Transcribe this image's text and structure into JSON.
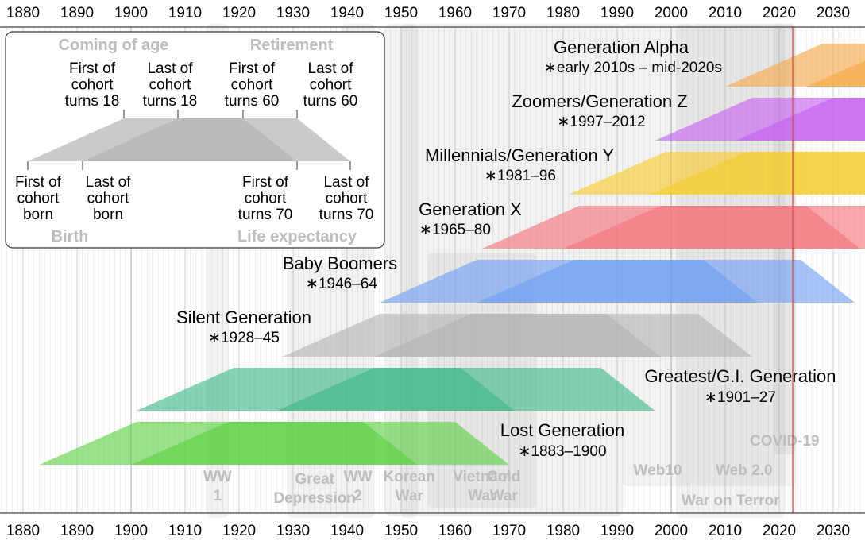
{
  "chart_data": {
    "type": "timeline",
    "axis": {
      "xlim": [
        1872,
        2038
      ],
      "ticks": [
        1880,
        1890,
        1900,
        1910,
        1920,
        1930,
        1940,
        1950,
        1960,
        1970,
        1980,
        1990,
        2000,
        2010,
        2020,
        2030
      ],
      "tick_labels": [
        "1880",
        "1890",
        "1900",
        "1910",
        "1920",
        "1930",
        "1940",
        "1950",
        "1960",
        "1970",
        "1980",
        "1990",
        "2000",
        "2010",
        "2020",
        "2030"
      ],
      "current_year_marker": 2022.5,
      "current_year_color": "#d9534f"
    },
    "events": [
      {
        "name": "ww1",
        "label": "WW\n1",
        "start": 1914,
        "end": 1918
      },
      {
        "name": "great-depression",
        "label": "Great\nDepression",
        "start": 1929,
        "end": 1939
      },
      {
        "name": "ww2",
        "label": "WW\n2",
        "start": 1939,
        "end": 1945
      },
      {
        "name": "korean-war",
        "label": "Korean\nWar",
        "start": 1950,
        "end": 1953
      },
      {
        "name": "vietnam-war",
        "label": "Vietnam\nWar",
        "start": 1955,
        "end": 1975
      },
      {
        "name": "cold-war",
        "label": "Cold\nWar",
        "start": 1947,
        "end": 1991
      },
      {
        "name": "web10",
        "label": "Web10",
        "start": 1991,
        "end": 2004
      },
      {
        "name": "web20",
        "label": "Web 2.0",
        "start": 2004,
        "end": 2023
      },
      {
        "name": "war-on-terror",
        "label": "War on Terror",
        "start": 2001,
        "end": 2021
      },
      {
        "name": "covid19",
        "label": "COVID-19",
        "start": 2019,
        "end": 2023
      }
    ],
    "generations": [
      {
        "name": "Generation Alpha",
        "years": "∗early 2010s – mid-2020s",
        "start": 2010,
        "end": 2025,
        "color": "#f5a742"
      },
      {
        "name": "Zoomers/Generation Z",
        "years": "∗1997–2012",
        "start": 1997,
        "end": 2012,
        "color": "#c55ff0"
      },
      {
        "name": "Millennials/Generation Y",
        "years": "∗1981–96",
        "start": 1981,
        "end": 1996,
        "color": "#f7cc2a"
      },
      {
        "name": "Generation X",
        "years": "∗1965–80",
        "start": 1965,
        "end": 1980,
        "color": "#f4737a"
      },
      {
        "name": "Baby Boomers",
        "years": "∗1946–64",
        "start": 1946,
        "end": 1964,
        "color": "#6f9ef2"
      },
      {
        "name": "Silent Generation",
        "years": "∗1928–45",
        "start": 1928,
        "end": 1945,
        "color": "#b3b3b3"
      },
      {
        "name": "Greatest/G.I. Generation",
        "years": "∗1901–27",
        "start": 1901,
        "end": 1927,
        "color": "#3db887"
      },
      {
        "name": "Lost Generation",
        "years": "∗1883–1900",
        "start": 1883,
        "end": 1900,
        "color": "#5ad141"
      }
    ],
    "legend": {
      "top_left": "Coming of age",
      "top_right": "Retirement",
      "bottom_left": "Birth",
      "bottom_right": "Life expectancy",
      "labels": {
        "first_18": "First of\ncohort\nturns 18",
        "last_18": "Last of\ncohort\nturns 18",
        "first_60": "First of\ncohort\nturns 60",
        "last_60": "Last of\ncohort\nturns 60",
        "first_born": "First of\ncohort\nborn",
        "last_born": "Last of\ncohort\nborn",
        "first_70": "First of\ncohort\nturns 70",
        "last_70": "Last of\ncohort\nturns 70"
      }
    }
  }
}
